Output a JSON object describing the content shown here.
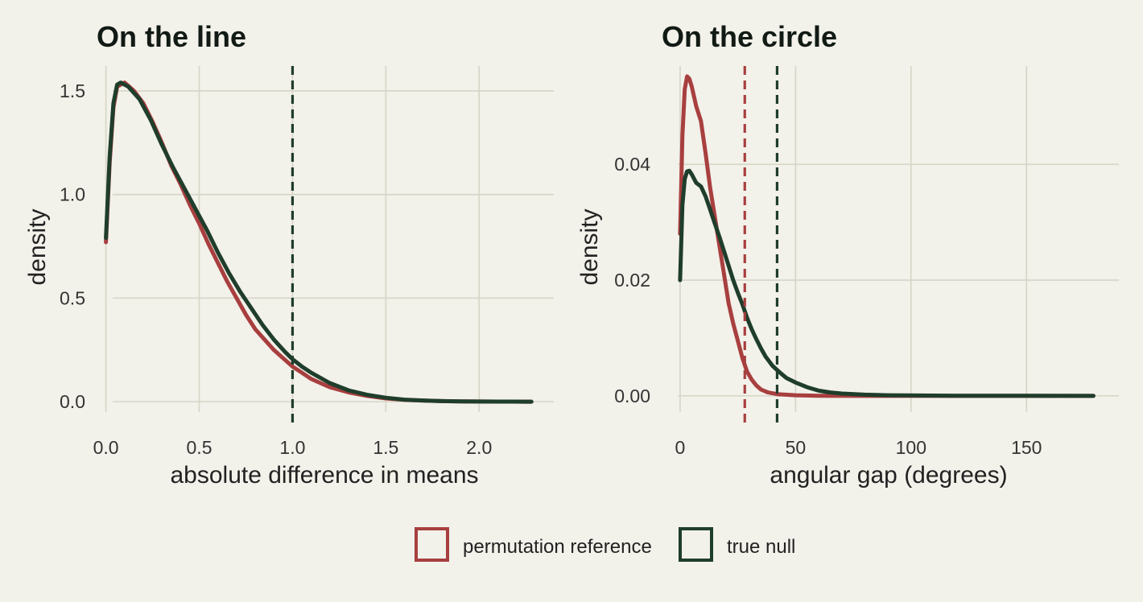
{
  "colors": {
    "background": "#f2f1ea",
    "permutation": "#a83f3f",
    "true_null": "#1f3d2b",
    "grid": "#d6d5c6"
  },
  "legend": {
    "position": "bottom",
    "items": [
      {
        "label": "permutation reference",
        "color": "#a83f3f"
      },
      {
        "label": "true null",
        "color": "#1f3d2b"
      }
    ]
  },
  "chart_data": [
    {
      "type": "line",
      "title": "On the line",
      "xlabel": "absolute difference in means",
      "ylabel": "density",
      "xlim": [
        -0.05,
        2.4
      ],
      "ylim": [
        -0.05,
        1.62
      ],
      "xticks": [
        0.0,
        0.5,
        1.0,
        1.5,
        2.0
      ],
      "xtick_labels": [
        "0.0",
        "0.5",
        "1.0",
        "1.5",
        "2.0"
      ],
      "yticks": [
        0.0,
        0.5,
        1.0,
        1.5
      ],
      "ytick_labels": [
        "0.0",
        "0.5",
        "1.0",
        "1.5"
      ],
      "grid": true,
      "vlines": [
        {
          "x": 1.0,
          "series": "true null"
        }
      ],
      "series": [
        {
          "name": "permutation reference",
          "points": [
            [
              0,
              0.77
            ],
            [
              0.02,
              1.15
            ],
            [
              0.04,
              1.42
            ],
            [
              0.06,
              1.52
            ],
            [
              0.1,
              1.54
            ],
            [
              0.15,
              1.5
            ],
            [
              0.2,
              1.44
            ],
            [
              0.25,
              1.35
            ],
            [
              0.3,
              1.25
            ],
            [
              0.35,
              1.14
            ],
            [
              0.4,
              1.05
            ],
            [
              0.45,
              0.95
            ],
            [
              0.5,
              0.86
            ],
            [
              0.55,
              0.76
            ],
            [
              0.6,
              0.67
            ],
            [
              0.65,
              0.58
            ],
            [
              0.7,
              0.5
            ],
            [
              0.75,
              0.42
            ],
            [
              0.8,
              0.35
            ],
            [
              0.85,
              0.3
            ],
            [
              0.9,
              0.25
            ],
            [
              0.95,
              0.21
            ],
            [
              1.0,
              0.17
            ],
            [
              1.05,
              0.14
            ],
            [
              1.1,
              0.11
            ],
            [
              1.2,
              0.07
            ],
            [
              1.3,
              0.045
            ],
            [
              1.4,
              0.028
            ],
            [
              1.5,
              0.016
            ],
            [
              1.6,
              0.009
            ],
            [
              1.7,
              0.005
            ],
            [
              1.8,
              0.003
            ],
            [
              1.9,
              0.0015
            ],
            [
              2.0,
              0.001
            ],
            [
              2.1,
              0.0005
            ],
            [
              2.28,
              0
            ]
          ]
        },
        {
          "name": "true null",
          "points": [
            [
              0,
              0.79
            ],
            [
              0.02,
              1.18
            ],
            [
              0.04,
              1.44
            ],
            [
              0.06,
              1.53
            ],
            [
              0.08,
              1.54
            ],
            [
              0.12,
              1.52
            ],
            [
              0.18,
              1.46
            ],
            [
              0.24,
              1.36
            ],
            [
              0.3,
              1.24
            ],
            [
              0.36,
              1.13
            ],
            [
              0.42,
              1.03
            ],
            [
              0.48,
              0.93
            ],
            [
              0.54,
              0.83
            ],
            [
              0.6,
              0.72
            ],
            [
              0.66,
              0.62
            ],
            [
              0.72,
              0.53
            ],
            [
              0.78,
              0.45
            ],
            [
              0.84,
              0.37
            ],
            [
              0.9,
              0.3
            ],
            [
              0.96,
              0.24
            ],
            [
              1.0,
              0.205
            ],
            [
              1.05,
              0.17
            ],
            [
              1.1,
              0.14
            ],
            [
              1.2,
              0.09
            ],
            [
              1.3,
              0.055
            ],
            [
              1.4,
              0.033
            ],
            [
              1.5,
              0.019
            ],
            [
              1.6,
              0.01
            ],
            [
              1.7,
              0.006
            ],
            [
              1.8,
              0.003
            ],
            [
              1.9,
              0.0018
            ],
            [
              2.0,
              0.001
            ],
            [
              2.1,
              0.0005
            ],
            [
              2.28,
              0
            ]
          ]
        }
      ]
    },
    {
      "type": "line",
      "title": "On the circle",
      "xlabel": "angular gap (degrees)",
      "ylabel": "density",
      "xlim": [
        -8,
        190
      ],
      "ylim": [
        -0.0028,
        0.057
      ],
      "xticks": [
        0,
        50,
        100,
        150
      ],
      "xtick_labels": [
        "0",
        "50",
        "100",
        "150"
      ],
      "yticks": [
        0.0,
        0.02,
        0.04
      ],
      "ytick_labels": [
        "0.00",
        "0.02",
        "0.04"
      ],
      "grid": true,
      "vlines": [
        {
          "x": 28,
          "series": "permutation reference"
        },
        {
          "x": 42,
          "series": "true null"
        }
      ],
      "series": [
        {
          "name": "permutation reference",
          "points": [
            [
              0,
              0.028
            ],
            [
              1,
              0.045
            ],
            [
              2,
              0.053
            ],
            [
              3,
              0.0552
            ],
            [
              4,
              0.0548
            ],
            [
              5,
              0.0535
            ],
            [
              7,
              0.05
            ],
            [
              9,
              0.0475
            ],
            [
              11,
              0.042
            ],
            [
              13,
              0.036
            ],
            [
              15,
              0.031
            ],
            [
              17,
              0.026
            ],
            [
              19,
              0.021
            ],
            [
              21,
              0.016
            ],
            [
              23,
              0.0125
            ],
            [
              25,
              0.0095
            ],
            [
              27,
              0.0065
            ],
            [
              29,
              0.0042
            ],
            [
              31,
              0.0028
            ],
            [
              33,
              0.0018
            ],
            [
              35,
              0.0011
            ],
            [
              38,
              0.0006
            ],
            [
              42,
              0.0003
            ],
            [
              50,
              0.0001
            ],
            [
              60,
              3e-05
            ],
            [
              80,
              0
            ],
            [
              100,
              0
            ],
            [
              150,
              0
            ],
            [
              179,
              0
            ]
          ]
        },
        {
          "name": "true null",
          "points": [
            [
              0,
              0.02
            ],
            [
              1,
              0.033
            ],
            [
              2,
              0.0375
            ],
            [
              3,
              0.0388
            ],
            [
              4,
              0.0389
            ],
            [
              5,
              0.0383
            ],
            [
              7,
              0.0368
            ],
            [
              9,
              0.0362
            ],
            [
              11,
              0.0345
            ],
            [
              13,
              0.0322
            ],
            [
              15,
              0.0298
            ],
            [
              17,
              0.0275
            ],
            [
              19,
              0.025
            ],
            [
              21,
              0.0225
            ],
            [
              23,
              0.02
            ],
            [
              25,
              0.0178
            ],
            [
              27,
              0.0158
            ],
            [
              29,
              0.0135
            ],
            [
              31,
              0.0115
            ],
            [
              33,
              0.0098
            ],
            [
              35,
              0.0082
            ],
            [
              37,
              0.0068
            ],
            [
              40,
              0.0052
            ],
            [
              43,
              0.0041
            ],
            [
              46,
              0.0031
            ],
            [
              50,
              0.0023
            ],
            [
              55,
              0.0015
            ],
            [
              60,
              0.0009
            ],
            [
              65,
              0.0006
            ],
            [
              70,
              0.0004
            ],
            [
              80,
              0.0002
            ],
            [
              90,
              0.0001
            ],
            [
              120,
              3e-05
            ],
            [
              150,
              1e-05
            ],
            [
              179,
              0
            ]
          ]
        }
      ]
    }
  ]
}
